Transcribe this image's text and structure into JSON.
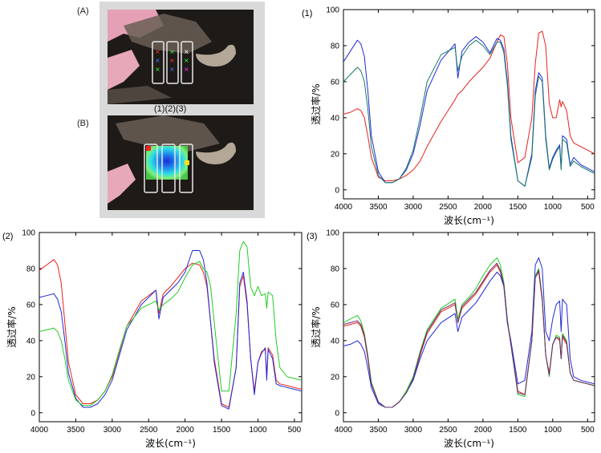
{
  "image_panel": {
    "label_a": "(A)",
    "label_b": "(B)",
    "strip_labels": "(1)(2)(3)"
  },
  "chart_data": [
    {
      "type": "line",
      "panel_label": "(1)",
      "xlabel": "波长(cm⁻¹)",
      "ylabel": "透过率/%",
      "xlim": [
        4000,
        400
      ],
      "ylim": [
        -5,
        100
      ],
      "xticks": [
        4000,
        3500,
        3000,
        2500,
        2000,
        1500,
        1000,
        500
      ],
      "yticks": [
        0,
        20,
        40,
        60,
        80,
        100
      ],
      "x": [
        4000,
        3900,
        3800,
        3750,
        3700,
        3650,
        3600,
        3500,
        3400,
        3300,
        3200,
        3100,
        3000,
        2900,
        2800,
        2600,
        2400,
        2360,
        2300,
        2200,
        2100,
        2000,
        1900,
        1800,
        1750,
        1700,
        1650,
        1600,
        1500,
        1400,
        1300,
        1250,
        1200,
        1150,
        1100,
        1050,
        1000,
        950,
        900,
        880,
        860,
        800,
        750,
        700,
        600,
        500,
        400
      ],
      "series": [
        {
          "color": "#e8221b",
          "values": [
            42,
            43,
            45,
            44,
            40,
            30,
            18,
            7,
            5,
            5,
            6,
            8,
            11,
            16,
            24,
            38,
            50,
            53,
            55,
            60,
            64,
            68,
            73,
            82,
            86,
            85,
            70,
            40,
            15,
            18,
            40,
            70,
            87,
            88,
            80,
            48,
            40,
            40,
            50,
            46,
            49,
            44,
            30,
            26,
            24,
            22,
            20
          ]
        },
        {
          "color": "#1f2ad8",
          "values": [
            71,
            77,
            83,
            81,
            74,
            55,
            30,
            10,
            4,
            4,
            6,
            11,
            20,
            36,
            55,
            72,
            81,
            62,
            77,
            82,
            85,
            82,
            76,
            84,
            83,
            78,
            60,
            30,
            5,
            2,
            20,
            55,
            65,
            62,
            30,
            12,
            18,
            22,
            25,
            12,
            30,
            28,
            14,
            18,
            14,
            12,
            10
          ]
        },
        {
          "color": "#1a7a6a",
          "values": [
            60,
            64,
            68,
            66,
            60,
            45,
            24,
            8,
            4,
            4,
            6,
            12,
            22,
            40,
            60,
            75,
            79,
            66,
            74,
            80,
            83,
            80,
            75,
            82,
            82,
            76,
            58,
            28,
            5,
            2,
            18,
            52,
            63,
            60,
            28,
            11,
            17,
            21,
            24,
            11,
            28,
            26,
            13,
            16,
            13,
            11,
            9
          ]
        }
      ]
    },
    {
      "type": "line",
      "panel_label": "(2)",
      "xlabel": "波长(cm⁻¹)",
      "ylabel": "透过率/%",
      "xlim": [
        4000,
        400
      ],
      "ylim": [
        -5,
        100
      ],
      "xticks": [
        4000,
        3500,
        3000,
        2500,
        2000,
        1500,
        1000,
        500
      ],
      "yticks": [
        0,
        20,
        40,
        60,
        80,
        100
      ],
      "x": [
        4000,
        3900,
        3800,
        3750,
        3700,
        3650,
        3600,
        3500,
        3400,
        3300,
        3200,
        3100,
        3000,
        2900,
        2800,
        2600,
        2400,
        2360,
        2300,
        2200,
        2100,
        2000,
        1900,
        1800,
        1750,
        1700,
        1650,
        1600,
        1500,
        1400,
        1300,
        1250,
        1200,
        1150,
        1100,
        1050,
        1000,
        950,
        900,
        880,
        860,
        800,
        750,
        700,
        600,
        500,
        400
      ],
      "series": [
        {
          "color": "#e8221b",
          "values": [
            79,
            82,
            85,
            82,
            72,
            50,
            28,
            10,
            5,
            5,
            7,
            12,
            20,
            34,
            48,
            62,
            68,
            55,
            66,
            70,
            75,
            80,
            83,
            82,
            78,
            70,
            50,
            30,
            5,
            3,
            25,
            70,
            76,
            60,
            30,
            12,
            28,
            34,
            35,
            20,
            36,
            32,
            18,
            16,
            15,
            14,
            13
          ]
        },
        {
          "color": "#1f2ad8",
          "values": [
            64,
            65,
            66,
            63,
            56,
            40,
            22,
            8,
            3,
            3,
            5,
            10,
            18,
            32,
            46,
            60,
            68,
            52,
            64,
            68,
            72,
            78,
            90,
            90,
            85,
            72,
            50,
            28,
            4,
            2,
            25,
            72,
            78,
            62,
            30,
            10,
            28,
            33,
            36,
            18,
            35,
            30,
            16,
            15,
            14,
            13,
            12
          ]
        },
        {
          "color": "#22cc22",
          "values": [
            45,
            46,
            47,
            45,
            40,
            30,
            18,
            7,
            4,
            4,
            7,
            12,
            21,
            35,
            48,
            58,
            62,
            57,
            60,
            63,
            67,
            75,
            82,
            84,
            80,
            78,
            70,
            50,
            12,
            12,
            55,
            90,
            95,
            92,
            70,
            65,
            70,
            65,
            66,
            58,
            67,
            65,
            40,
            25,
            20,
            19,
            18
          ]
        }
      ]
    },
    {
      "type": "line",
      "panel_label": "(3)",
      "xlabel": "波长(cm⁻¹)",
      "ylabel": "透过率/%",
      "xlim": [
        4000,
        400
      ],
      "ylim": [
        -5,
        100
      ],
      "xticks": [
        4000,
        3500,
        3000,
        2500,
        2000,
        1500,
        1000,
        500
      ],
      "yticks": [
        0,
        20,
        40,
        60,
        80,
        100
      ],
      "x": [
        4000,
        3900,
        3800,
        3750,
        3700,
        3650,
        3600,
        3500,
        3400,
        3300,
        3200,
        3100,
        3000,
        2900,
        2800,
        2600,
        2400,
        2360,
        2300,
        2200,
        2100,
        2000,
        1900,
        1800,
        1750,
        1700,
        1650,
        1600,
        1500,
        1400,
        1300,
        1250,
        1200,
        1150,
        1100,
        1050,
        1000,
        950,
        900,
        880,
        860,
        800,
        750,
        700,
        600,
        500,
        400
      ],
      "series": [
        {
          "color": "#e8221b",
          "values": [
            48,
            49,
            50,
            48,
            42,
            30,
            16,
            6,
            3,
            3,
            6,
            11,
            19,
            32,
            44,
            56,
            60,
            50,
            58,
            62,
            66,
            72,
            78,
            82,
            78,
            70,
            50,
            38,
            12,
            10,
            40,
            75,
            78,
            62,
            32,
            22,
            38,
            42,
            40,
            30,
            42,
            38,
            22,
            18,
            17,
            16,
            15
          ]
        },
        {
          "color": "#1f2ad8",
          "values": [
            37,
            38,
            40,
            38,
            34,
            25,
            14,
            5,
            3,
            3,
            6,
            11,
            18,
            30,
            40,
            50,
            55,
            45,
            53,
            57,
            61,
            67,
            73,
            78,
            76,
            70,
            50,
            40,
            16,
            18,
            45,
            82,
            86,
            80,
            45,
            40,
            52,
            60,
            62,
            45,
            63,
            60,
            30,
            20,
            18,
            17,
            16
          ]
        },
        {
          "color": "#22cc22",
          "values": [
            50,
            52,
            54,
            51,
            44,
            32,
            17,
            6,
            3,
            3,
            6,
            12,
            20,
            34,
            46,
            58,
            63,
            52,
            60,
            64,
            69,
            76,
            82,
            86,
            82,
            72,
            52,
            38,
            10,
            9,
            40,
            76,
            80,
            64,
            32,
            20,
            38,
            43,
            42,
            30,
            44,
            40,
            22,
            18,
            17,
            16,
            15
          ]
        },
        {
          "color": "#6a2a70",
          "values": [
            49,
            50,
            51,
            49,
            43,
            31,
            16,
            6,
            3,
            3,
            6,
            11,
            19,
            33,
            45,
            57,
            61,
            50,
            59,
            63,
            67,
            73,
            79,
            83,
            79,
            71,
            51,
            38,
            11,
            10,
            40,
            75,
            79,
            63,
            32,
            21,
            38,
            42,
            41,
            30,
            43,
            39,
            22,
            18,
            17,
            16,
            15
          ]
        }
      ]
    }
  ]
}
